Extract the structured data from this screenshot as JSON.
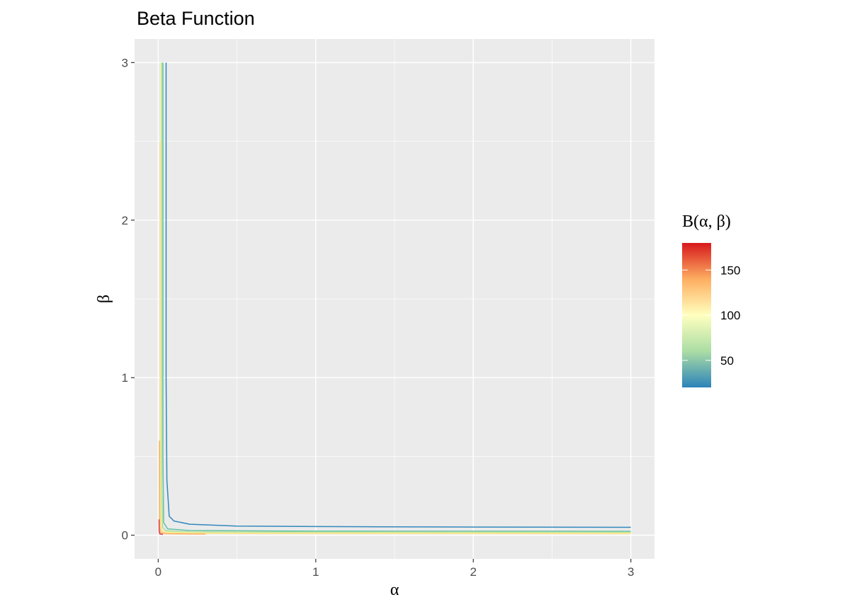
{
  "chart_data": {
    "type": "contour",
    "title": "Beta Function",
    "xlabel": "α",
    "ylabel": "β",
    "xlim": [
      -0.15,
      3.15
    ],
    "ylim": [
      -0.15,
      3.15
    ],
    "x_ticks": [
      0,
      1,
      2,
      3
    ],
    "x_tick_labels": [
      "0",
      "1",
      "2",
      "3"
    ],
    "y_ticks": [
      0,
      1,
      2,
      3
    ],
    "y_tick_labels": [
      "0",
      "1",
      "2",
      "3"
    ],
    "grid": true,
    "panel_background": "#ebebeb",
    "legend": {
      "title": "Β(α, β)",
      "position": "right",
      "range": [
        20,
        180
      ],
      "breaks": [
        150,
        100,
        50
      ],
      "break_labels": [
        "150",
        "100",
        "50"
      ],
      "colors": [
        "#2b83ba",
        "#abdda4",
        "#ffffbf",
        "#fdae61",
        "#d7191c"
      ]
    },
    "contours": [
      {
        "level": 20,
        "color": "#3288bd",
        "points": [
          [
            0.05,
            3.0
          ],
          [
            0.05,
            1.0
          ],
          [
            0.055,
            0.35
          ],
          [
            0.07,
            0.12
          ],
          [
            0.1,
            0.09
          ],
          [
            0.2,
            0.07
          ],
          [
            0.5,
            0.058
          ],
          [
            1.0,
            0.055
          ],
          [
            1.4,
            0.053
          ],
          [
            2.0,
            0.052
          ],
          [
            3.0,
            0.05
          ]
        ]
      },
      {
        "level": 40,
        "color": "#66c2a5",
        "points": [
          [
            0.03,
            3.0
          ],
          [
            0.03,
            0.5
          ],
          [
            0.035,
            0.08
          ],
          [
            0.06,
            0.04
          ],
          [
            0.2,
            0.03
          ],
          [
            1.0,
            0.026
          ],
          [
            3.0,
            0.025
          ]
        ]
      },
      {
        "level": 60,
        "color": "#abdda4",
        "points": [
          [
            0.022,
            3.0
          ],
          [
            0.022,
            0.3
          ],
          [
            0.028,
            0.05
          ],
          [
            0.05,
            0.028
          ],
          [
            0.2,
            0.021
          ],
          [
            1.0,
            0.019
          ],
          [
            3.0,
            0.018
          ]
        ]
      },
      {
        "level": 80,
        "color": "#e6f598",
        "points": [
          [
            0.017,
            3.0
          ],
          [
            0.017,
            0.2
          ],
          [
            0.022,
            0.035
          ],
          [
            0.05,
            0.02
          ],
          [
            0.3,
            0.015
          ],
          [
            3.0,
            0.014
          ]
        ]
      },
      {
        "level": 100,
        "color": "#fee08b",
        "points": [
          [
            0.013,
            2.5
          ],
          [
            0.013,
            0.15
          ],
          [
            0.02,
            0.025
          ],
          [
            0.06,
            0.014
          ],
          [
            0.5,
            0.011
          ],
          [
            3.0,
            0.01
          ]
        ]
      },
      {
        "level": 140,
        "color": "#fdae61",
        "points": [
          [
            0.008,
            0.6
          ],
          [
            0.009,
            0.05
          ],
          [
            0.015,
            0.015
          ],
          [
            0.05,
            0.009
          ],
          [
            0.3,
            0.007
          ]
        ]
      },
      {
        "level": 170,
        "color": "#d53e4f",
        "points": [
          [
            0.005,
            0.1
          ],
          [
            0.006,
            0.02
          ],
          [
            0.01,
            0.008
          ],
          [
            0.03,
            0.005
          ]
        ]
      }
    ]
  }
}
